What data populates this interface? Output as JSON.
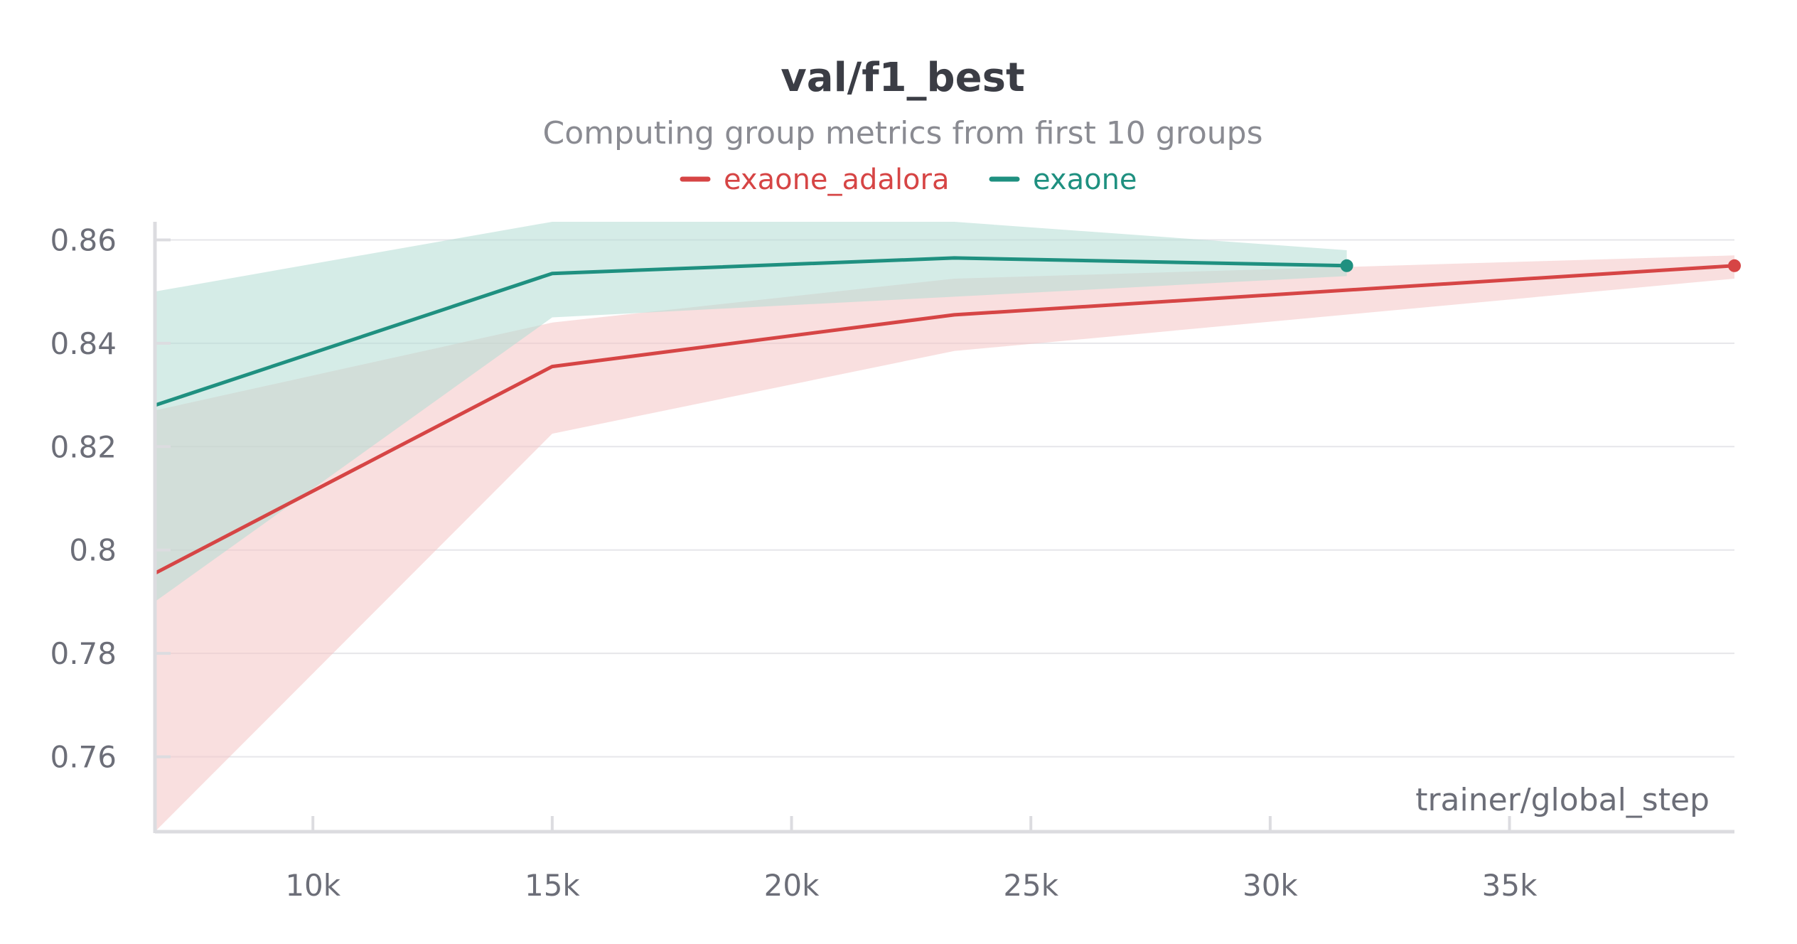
{
  "chart_data": {
    "type": "line",
    "title": "val/f1_best",
    "subtitle": "Computing group metrics from first 10 groups",
    "xlabel": "trainer/global_step",
    "ylabel": "",
    "xlim": [
      6700,
      39700
    ],
    "ylim": [
      0.7455,
      0.8635
    ],
    "x_ticks": [
      10000,
      15000,
      20000,
      25000,
      30000,
      35000
    ],
    "x_tick_labels": [
      "10k",
      "15k",
      "20k",
      "25k",
      "30k",
      "35k"
    ],
    "y_ticks": [
      0.76,
      0.78,
      0.8,
      0.82,
      0.84,
      0.86
    ],
    "y_tick_labels": [
      "0.76",
      "0.78",
      "0.8",
      "0.82",
      "0.84",
      "0.86"
    ],
    "grid": true,
    "legend_position": "top-center",
    "series": [
      {
        "name": "exaone_adalora",
        "color": "#d64545",
        "band_color": "#f4c4c4",
        "x": [
          6700,
          15000,
          23400,
          39700
        ],
        "y": [
          0.7955,
          0.8355,
          0.8455,
          0.855
        ],
        "y_min": [
          0.7455,
          0.8225,
          0.8385,
          0.8525
        ],
        "y_max": [
          0.827,
          0.844,
          0.8525,
          0.857
        ],
        "end_marker": true
      },
      {
        "name": "exaone",
        "color": "#1f9080",
        "band_color": "#b2dcd4",
        "x": [
          6700,
          15000,
          23400,
          31600
        ],
        "y": [
          0.828,
          0.8535,
          0.8565,
          0.855
        ],
        "y_min": [
          0.79,
          0.845,
          0.849,
          0.853
        ],
        "y_max": [
          0.85,
          0.8635,
          0.8635,
          0.858
        ],
        "end_marker": true
      }
    ]
  }
}
